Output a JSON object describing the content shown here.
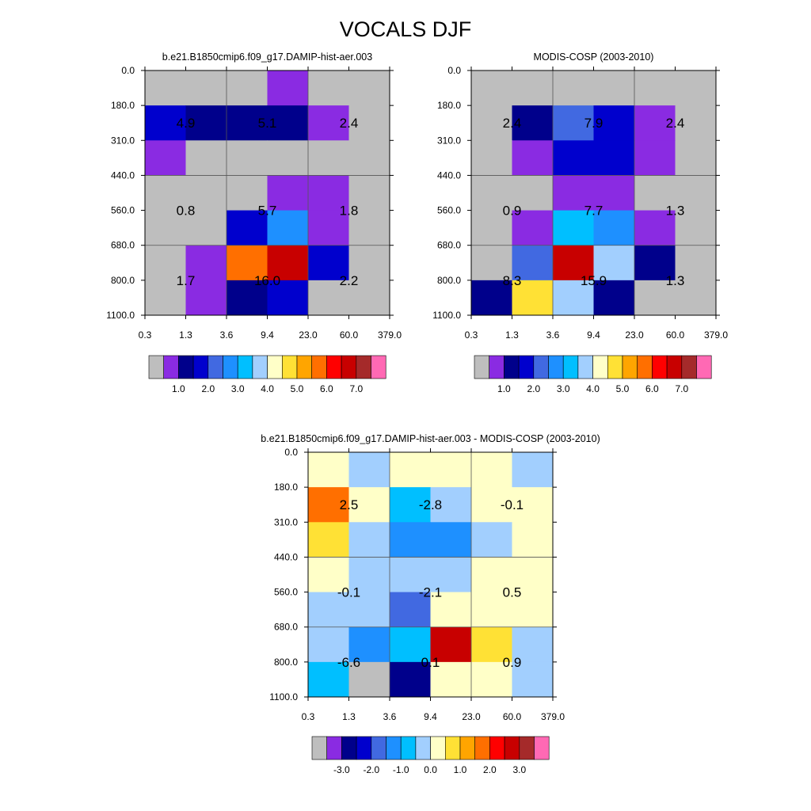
{
  "title": "VOCALS DJF",
  "colors": {
    "c0": "#bebebe",
    "c1": "#8a2be2",
    "c2": "#00008b",
    "c3": "#0000cd",
    "c4": "#4169e1",
    "c5": "#1e90ff",
    "c6": "#00bfff",
    "c7": "#a2cffe",
    "c8": "#ffffc8",
    "c9": "#ffe135",
    "c10": "#ffa500",
    "c11": "#ff6f00",
    "c12": "#ff0000",
    "c13": "#c80000",
    "c14": "#a52a2a",
    "c15": "#ff69b4"
  },
  "chart_data": [
    {
      "type": "heatmap",
      "title": "b.e21.B1850cmip6.f09_g17.DAMIP-hist-aer.003",
      "x_ticks": [
        "0.3",
        "1.3",
        "3.6",
        "9.4",
        "23.0",
        "60.0",
        "379.0"
      ],
      "y_ticks": [
        "0.0",
        "180.0",
        "310.0",
        "440.0",
        "560.0",
        "680.0",
        "800.0",
        "1100.0"
      ],
      "cells": [
        [
          "c0",
          "c0",
          "c0",
          "c1",
          "c0",
          "c0"
        ],
        [
          "c3",
          "c2",
          "c2",
          "c2",
          "c1",
          "c0"
        ],
        [
          "c1",
          "c0",
          "c0",
          "c0",
          "c0",
          "c0"
        ],
        [
          "c0",
          "c0",
          "c0",
          "c1",
          "c1",
          "c0"
        ],
        [
          "c0",
          "c0",
          "c3",
          "c5",
          "c1",
          "c0"
        ],
        [
          "c0",
          "c1",
          "c11",
          "c13",
          "c3",
          "c0"
        ],
        [
          "c0",
          "c1",
          "c2",
          "c3",
          "c0",
          "c0"
        ]
      ],
      "block_labels": [
        [
          "4.9",
          "5.1",
          "2.4"
        ],
        [
          "0.8",
          "5.7",
          "1.8"
        ],
        [
          "1.7",
          "16.0",
          "2.2"
        ]
      ],
      "colorbar_labels": [
        "1.0",
        "2.0",
        "3.0",
        "4.0",
        "5.0",
        "6.0",
        "7.0"
      ],
      "colorbar_colors": [
        "c0",
        "c1",
        "c2",
        "c3",
        "c4",
        "c5",
        "c6",
        "c7",
        "c8",
        "c9",
        "c10",
        "c11",
        "c12",
        "c13",
        "c14",
        "c15"
      ]
    },
    {
      "type": "heatmap",
      "title": "MODIS-COSP (2003-2010)",
      "x_ticks": [
        "0.3",
        "1.3",
        "3.6",
        "9.4",
        "23.0",
        "60.0",
        "379.0"
      ],
      "y_ticks": [
        "0.0",
        "180.0",
        "310.0",
        "440.0",
        "560.0",
        "680.0",
        "800.0",
        "1100.0"
      ],
      "cells": [
        [
          "c0",
          "c0",
          "c0",
          "c0",
          "c0",
          "c0"
        ],
        [
          "c0",
          "c2",
          "c4",
          "c3",
          "c1",
          "c0"
        ],
        [
          "c0",
          "c1",
          "c3",
          "c3",
          "c1",
          "c0"
        ],
        [
          "c0",
          "c0",
          "c1",
          "c1",
          "c0",
          "c0"
        ],
        [
          "c0",
          "c1",
          "c6",
          "c5",
          "c1",
          "c0"
        ],
        [
          "c0",
          "c4",
          "c13",
          "c7",
          "c2",
          "c0"
        ],
        [
          "c2",
          "c9",
          "c7",
          "c2",
          "c0",
          "c0"
        ]
      ],
      "block_labels": [
        [
          "2.4",
          "7.9",
          "2.4"
        ],
        [
          "0.9",
          "7.7",
          "1.3"
        ],
        [
          "8.3",
          "15.9",
          "1.3"
        ]
      ],
      "colorbar_labels": [
        "1.0",
        "2.0",
        "3.0",
        "4.0",
        "5.0",
        "6.0",
        "7.0"
      ],
      "colorbar_colors": [
        "c0",
        "c1",
        "c2",
        "c3",
        "c4",
        "c5",
        "c6",
        "c7",
        "c8",
        "c9",
        "c10",
        "c11",
        "c12",
        "c13",
        "c14",
        "c15"
      ]
    },
    {
      "type": "heatmap",
      "title": "b.e21.B1850cmip6.f09_g17.DAMIP-hist-aer.003 - MODIS-COSP (2003-2010)",
      "x_ticks": [
        "0.3",
        "1.3",
        "3.6",
        "9.4",
        "23.0",
        "60.0",
        "379.0"
      ],
      "y_ticks": [
        "0.0",
        "180.0",
        "310.0",
        "440.0",
        "560.0",
        "680.0",
        "800.0",
        "1100.0"
      ],
      "cells": [
        [
          "c8",
          "c7",
          "c8",
          "c8",
          "c8",
          "c7"
        ],
        [
          "c11",
          "c8",
          "c6",
          "c7",
          "c8",
          "c8"
        ],
        [
          "c9",
          "c7",
          "c5",
          "c5",
          "c7",
          "c8"
        ],
        [
          "c8",
          "c7",
          "c7",
          "c7",
          "c8",
          "c8"
        ],
        [
          "c7",
          "c7",
          "c4",
          "c8",
          "c8",
          "c8"
        ],
        [
          "c7",
          "c5",
          "c6",
          "c13",
          "c9",
          "c7"
        ],
        [
          "c6",
          "c0",
          "c2",
          "c8",
          "c8",
          "c7"
        ]
      ],
      "block_labels": [
        [
          "2.5",
          "-2.8",
          "-0.1"
        ],
        [
          "-0.1",
          "-2.1",
          "0.5"
        ],
        [
          "-6.6",
          "0.1",
          "0.9"
        ]
      ],
      "colorbar_labels": [
        "-3.0",
        "-2.0",
        "-1.0",
        "0.0",
        "1.0",
        "2.0",
        "3.0"
      ],
      "colorbar_colors": [
        "c0",
        "c1",
        "c2",
        "c3",
        "c4",
        "c5",
        "c6",
        "c7",
        "c8",
        "c9",
        "c10",
        "c11",
        "c12",
        "c13",
        "c14",
        "c15"
      ]
    }
  ]
}
